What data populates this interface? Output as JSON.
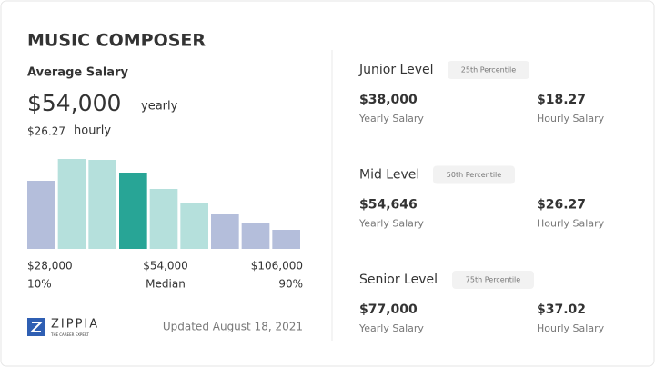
{
  "title": "MUSIC COMPOSER",
  "average": {
    "label": "Average Salary",
    "yearly_amount": "$54,000",
    "yearly_unit": "yearly",
    "hourly_amount": "$26.27",
    "hourly_unit": "hourly"
  },
  "chart_data": {
    "type": "bar",
    "values": [
      75,
      99,
      98,
      84,
      66,
      51,
      38,
      28,
      21
    ],
    "colors": [
      "#b4bedb",
      "#b5e0dc",
      "#b5e0dc",
      "#28a596",
      "#b5e0dc",
      "#b5e0dc",
      "#b4bedb",
      "#b4bedb",
      "#b4bedb"
    ],
    "ylim": [
      0,
      100
    ]
  },
  "range": {
    "low": {
      "amount": "$28,000",
      "percentile": "10%"
    },
    "mid": {
      "amount": "$54,000",
      "percentile": "Median"
    },
    "high": {
      "amount": "$106,000",
      "percentile": "90%"
    }
  },
  "logo": {
    "name": "ZIPPIA",
    "tagline": "THE CAREER EXPERT"
  },
  "updated": "Updated August 18, 2021",
  "levels": [
    {
      "name": "Junior Level",
      "badge": "25th Percentile",
      "yearly": "$38,000",
      "yearly_label": "Yearly Salary",
      "hourly": "$18.27",
      "hourly_label": "Hourly Salary"
    },
    {
      "name": "Mid Level",
      "badge": "50th Percentile",
      "yearly": "$54,646",
      "yearly_label": "Yearly Salary",
      "hourly": "$26.27",
      "hourly_label": "Hourly Salary"
    },
    {
      "name": "Senior Level",
      "badge": "75th Percentile",
      "yearly": "$77,000",
      "yearly_label": "Yearly Salary",
      "hourly": "$37.02",
      "hourly_label": "Hourly Salary"
    }
  ]
}
